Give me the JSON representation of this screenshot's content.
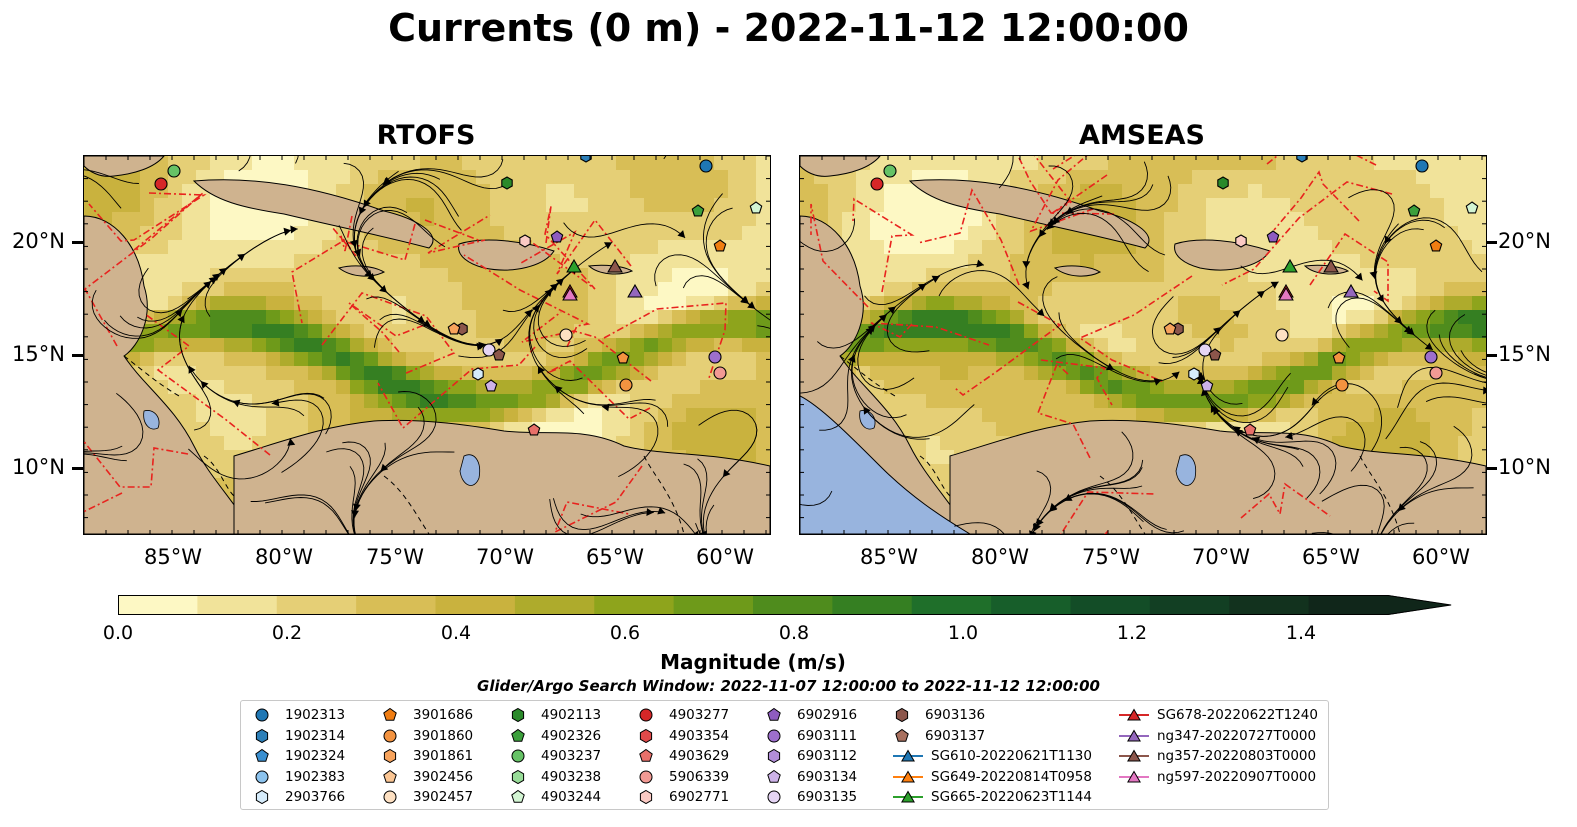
{
  "title": "Currents (0 m) - 2022-11-12 12:00:00",
  "panels": [
    {
      "title": "RTOFS"
    },
    {
      "title": "AMSEAS"
    }
  ],
  "lat_labels": [
    "20°N",
    "15°N",
    "10°N"
  ],
  "lon_labels": [
    "85°W",
    "80°W",
    "75°W",
    "70°W",
    "65°W",
    "60°W"
  ],
  "colorbar": {
    "label": "Magnitude (m/s)",
    "ticks": [
      "0.0",
      "0.2",
      "0.4",
      "0.6",
      "0.8",
      "1.0",
      "1.2",
      "1.4"
    ],
    "range": [
      0,
      1.5
    ],
    "extend": "max",
    "colors": [
      "#fdf8c4",
      "#f1e39a",
      "#e5cf76",
      "#d8be56",
      "#c9b23e",
      "#aeab2c",
      "#8ea41c",
      "#6e9a1a",
      "#4f8c1d",
      "#357f22",
      "#1f6f2a",
      "#175e2a",
      "#134d27",
      "#123f23",
      "#12321e",
      "#10261a"
    ]
  },
  "land_color": "#cfb38f",
  "ocean_pacific_color": "#98b4de",
  "search_window": "Glider/Argo Search Window: 2022-11-07 12:00:00 to 2022-11-12 12:00:00",
  "legend": {
    "columns": [
      [
        {
          "label": "1902313",
          "marker": "circle",
          "color": "#1f77b4"
        },
        {
          "label": "1902314",
          "marker": "hexagon",
          "color": "#2c7fb8"
        },
        {
          "label": "1902324",
          "marker": "pentagon",
          "color": "#3a8fd0"
        },
        {
          "label": "1902383",
          "marker": "circle",
          "color": "#8cc3ee"
        },
        {
          "label": "2903766",
          "marker": "hexagon",
          "color": "#d6ecfb"
        }
      ],
      [
        {
          "label": "3901686",
          "marker": "pentagon",
          "color": "#f07d12"
        },
        {
          "label": "3901860",
          "marker": "circle",
          "color": "#f39340"
        },
        {
          "label": "3901861",
          "marker": "hexagon",
          "color": "#f7a35c"
        },
        {
          "label": "3902456",
          "marker": "pentagon",
          "color": "#fbc694"
        },
        {
          "label": "3902457",
          "marker": "circle",
          "color": "#fde0c2"
        }
      ],
      [
        {
          "label": "4902113",
          "marker": "hexagon",
          "color": "#2a8a2a"
        },
        {
          "label": "4902326",
          "marker": "pentagon",
          "color": "#3ca03c"
        },
        {
          "label": "4903237",
          "marker": "circle",
          "color": "#66c266"
        },
        {
          "label": "4903238",
          "marker": "hexagon",
          "color": "#98dc98"
        },
        {
          "label": "4903244",
          "marker": "pentagon",
          "color": "#d3f5d3"
        }
      ],
      [
        {
          "label": "4903277",
          "marker": "circle",
          "color": "#d62728"
        },
        {
          "label": "4903354",
          "marker": "hexagon",
          "color": "#df4a4a"
        },
        {
          "label": "4903629",
          "marker": "pentagon",
          "color": "#e8706a"
        },
        {
          "label": "5906339",
          "marker": "circle",
          "color": "#f29a94"
        },
        {
          "label": "6902771",
          "marker": "hexagon",
          "color": "#fbcac4"
        }
      ],
      [
        {
          "label": "6902916",
          "marker": "pentagon",
          "color": "#8e5cc0"
        },
        {
          "label": "6903111",
          "marker": "circle",
          "color": "#9d6fcc"
        },
        {
          "label": "6903112",
          "marker": "hexagon",
          "color": "#b28ed9"
        },
        {
          "label": "6903134",
          "marker": "pentagon",
          "color": "#cdb2e8"
        },
        {
          "label": "6903135",
          "marker": "circle",
          "color": "#e5d5f4"
        }
      ],
      [
        {
          "label": "6903136",
          "marker": "hexagon",
          "color": "#8c564b"
        },
        {
          "label": "6903137",
          "marker": "pentagon",
          "color": "#a8705f"
        },
        {
          "label": "SG610-20220621T1130",
          "marker": "triangle-line",
          "color": "#1f77b4"
        },
        {
          "label": "SG649-20220814T0958",
          "marker": "triangle-line",
          "color": "#ff7f0e"
        },
        {
          "label": "SG665-20220623T1144",
          "marker": "triangle-line",
          "color": "#2ca02c"
        }
      ],
      [
        {
          "label": "SG678-20220622T1240",
          "marker": "triangle-line",
          "color": "#d62728"
        },
        {
          "label": "ng347-20220727T0000",
          "marker": "triangle-line",
          "color": "#9467bd"
        },
        {
          "label": "ng357-20220803T0000",
          "marker": "triangle-line",
          "color": "#8c564b"
        },
        {
          "label": "ng597-20220907T0000",
          "marker": "triangle-line",
          "color": "#e377c2"
        }
      ]
    ]
  }
}
